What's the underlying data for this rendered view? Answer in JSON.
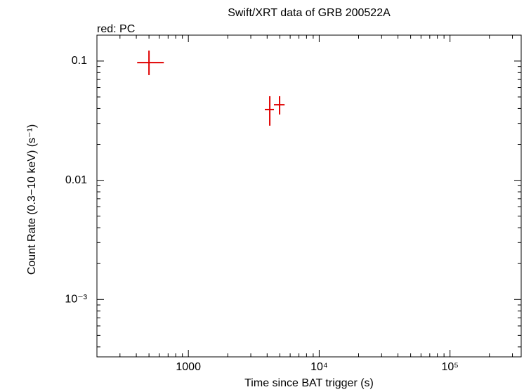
{
  "chart_data": {
    "type": "scatter",
    "title": "Swift/XRT data of GRB 200522A",
    "annotation": "red: PC",
    "xlabel": "Time since BAT trigger (s)",
    "ylabel": "Count Rate (0.3−10 keV) (s⁻¹)",
    "xscale": "log",
    "yscale": "log",
    "xlim": [
      200,
      350000
    ],
    "ylim": [
      0.00033,
      0.165
    ],
    "xticks": [
      1000,
      {
        "value": 10000,
        "label": "10⁴"
      },
      {
        "value": 100000,
        "label": "10⁵"
      }
    ],
    "yticks": [
      0.1,
      0.01,
      {
        "value": 0.001,
        "label": "10⁻³"
      }
    ],
    "xminor_ticks": [
      300,
      400,
      500,
      600,
      700,
      800,
      900,
      2000,
      3000,
      4000,
      5000,
      6000,
      7000,
      8000,
      9000,
      20000,
      30000,
      40000,
      50000,
      60000,
      70000,
      80000,
      90000,
      200000,
      300000
    ],
    "yminor_ticks": [
      0.0004,
      0.0005,
      0.0006,
      0.0007,
      0.0008,
      0.0009,
      0.002,
      0.003,
      0.004,
      0.005,
      0.006,
      0.007,
      0.008,
      0.009,
      0.02,
      0.03,
      0.04,
      0.05,
      0.06,
      0.07,
      0.08,
      0.09
    ],
    "series": [
      {
        "name": "PC",
        "color": "#e00000",
        "x": [
          500,
          4190,
          4980
        ],
        "x_low": [
          406,
          3840,
          4510
        ],
        "x_high": [
          649,
          4510,
          5440
        ],
        "values": [
          0.097,
          0.0392,
          0.043
        ],
        "y_low": [
          0.0762,
          0.0287,
          0.0356
        ],
        "y_high": [
          0.1225,
          0.0507,
          0.0507
        ]
      }
    ]
  }
}
